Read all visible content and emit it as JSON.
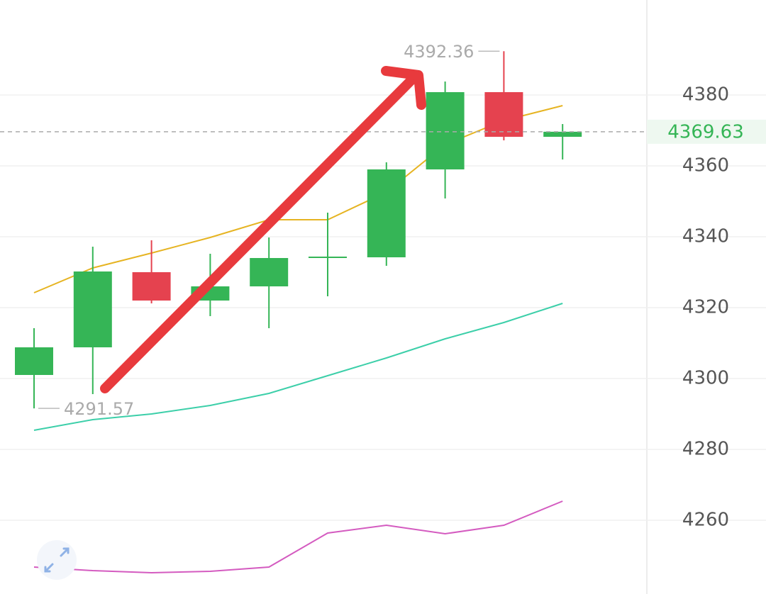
{
  "chart_data": {
    "type": "candlestick",
    "candles": [
      {
        "open": 4301,
        "high": 4314.2,
        "low": 4291.57,
        "close": 4308.8
      },
      {
        "open": 4308.8,
        "high": 4337.2,
        "low": 4295.6,
        "close": 4330.2
      },
      {
        "open": 4330,
        "high": 4339,
        "low": 4321.2,
        "close": 4322
      },
      {
        "open": 4322,
        "high": 4335.2,
        "low": 4317.6,
        "close": 4326
      },
      {
        "open": 4326,
        "high": 4339.8,
        "low": 4314.2,
        "close": 4334
      },
      {
        "open": 4334.2,
        "high": 4346.8,
        "low": 4323.2,
        "close": 4334.4
      },
      {
        "open": 4334.2,
        "high": 4361,
        "low": 4331.8,
        "close": 4359
      },
      {
        "open": 4359,
        "high": 4383.8,
        "low": 4350.8,
        "close": 4380.8
      },
      {
        "open": 4380.8,
        "high": 4392.36,
        "low": 4367.2,
        "close": 4368.2
      },
      {
        "open": 4368.2,
        "high": 4371.8,
        "low": 4361.8,
        "close": 4369.63
      }
    ],
    "up_color": "#35b556",
    "down_color": "#e5424f",
    "ma_lines": [
      {
        "color": "#e6b422",
        "values": [
          4324.2,
          4331.2,
          4335.4,
          4339.8,
          4344.8,
          4344.8,
          4352.6,
          4366,
          4372.8,
          4377
        ]
      },
      {
        "color": "#3ccfa9",
        "values": [
          4285.4,
          4288.4,
          4290,
          4292.4,
          4295.8,
          4300.8,
          4305.8,
          4311.2,
          4315.8,
          4321.2
        ]
      },
      {
        "color": "#d45bc0",
        "values": [
          4246.8,
          4245.8,
          4245.2,
          4245.6,
          4246.8,
          4256.4,
          4258.6,
          4256.2,
          4258.6,
          4265.4
        ]
      }
    ],
    "ylim": [
      4239.2,
      4406.8
    ],
    "yticks": [
      4260,
      4280,
      4300,
      4320,
      4340,
      4360,
      4380
    ],
    "grid": true
  }
}
